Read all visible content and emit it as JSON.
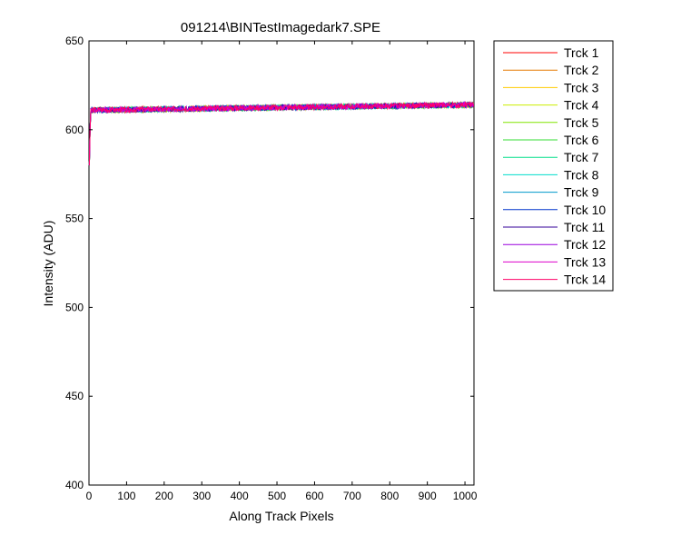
{
  "chart_data": {
    "type": "line",
    "title": "091214\\BINTestImagedark7.SPE",
    "xlabel": "Along Track Pixels",
    "ylabel": "Intensity (ADU)",
    "xlim": [
      0,
      1024
    ],
    "ylim": [
      400,
      650
    ],
    "xticks": [
      0,
      100,
      200,
      300,
      400,
      500,
      600,
      700,
      800,
      900,
      1000
    ],
    "yticks": [
      400,
      450,
      500,
      550,
      600,
      650
    ],
    "grid": false,
    "legend_position": "outside-top-right",
    "trace_shape": {
      "start_value": 580,
      "plateau_start": 611,
      "plateau_end": 614,
      "noise_amplitude": 1.5
    },
    "series": [
      {
        "name": "Trck 1",
        "color": "#ff0000"
      },
      {
        "name": "Trck 2",
        "color": "#e67a00"
      },
      {
        "name": "Trck 3",
        "color": "#ffcc00"
      },
      {
        "name": "Trck 4",
        "color": "#ccee00"
      },
      {
        "name": "Trck 5",
        "color": "#80e600"
      },
      {
        "name": "Trck 6",
        "color": "#33dd33"
      },
      {
        "name": "Trck 7",
        "color": "#00dd88"
      },
      {
        "name": "Trck 8",
        "color": "#00ddcc"
      },
      {
        "name": "Trck 9",
        "color": "#0099cc"
      },
      {
        "name": "Trck 10",
        "color": "#0033cc"
      },
      {
        "name": "Trck 11",
        "color": "#330099"
      },
      {
        "name": "Trck 12",
        "color": "#9900dd"
      },
      {
        "name": "Trck 13",
        "color": "#dd00cc"
      },
      {
        "name": "Trck 14",
        "color": "#ff0066"
      }
    ]
  }
}
